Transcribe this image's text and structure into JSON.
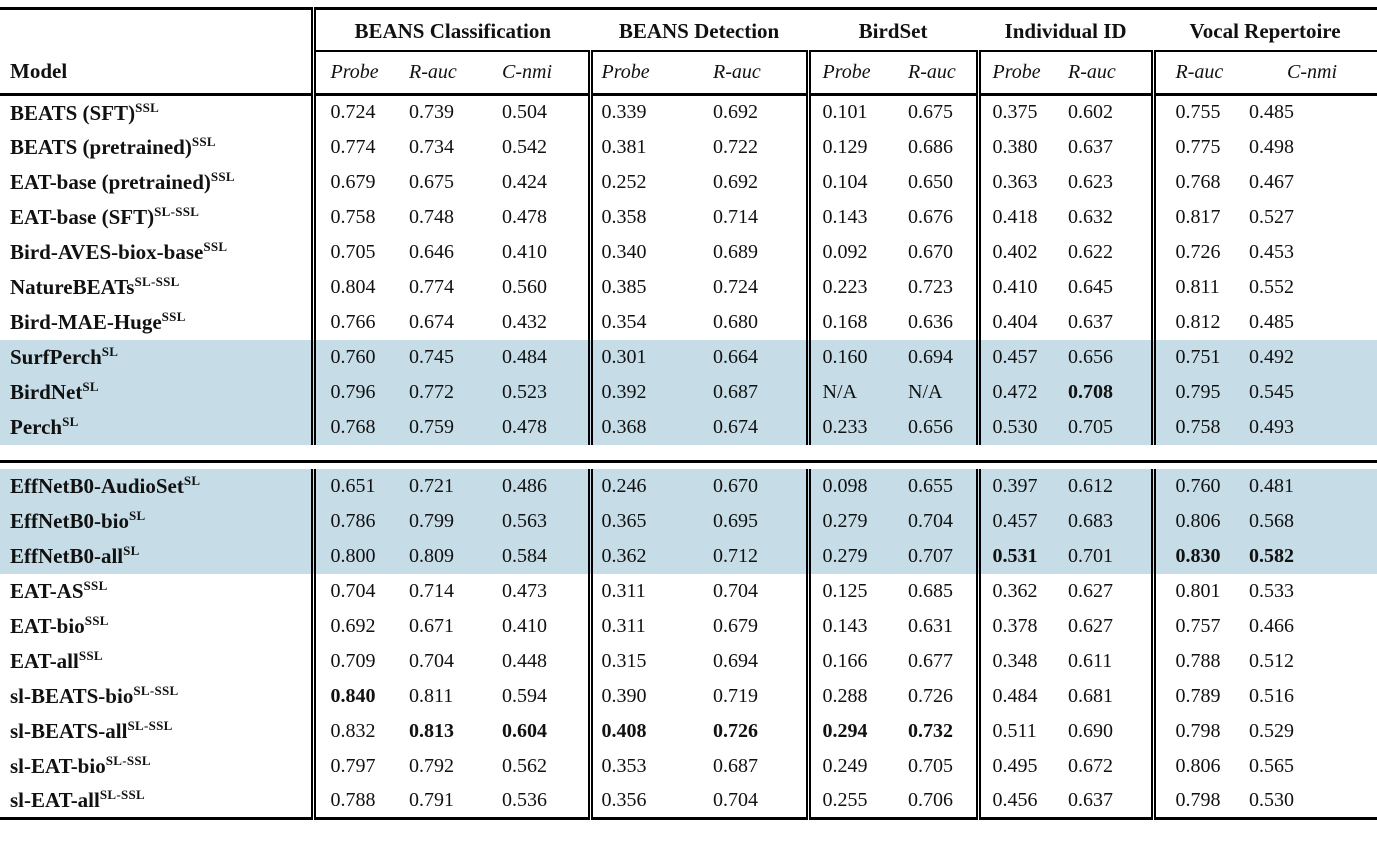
{
  "table": {
    "model_header": "Model",
    "highlight_color": "#c6dde8",
    "na_label": "N/A",
    "groups": [
      {
        "label": "BEANS Classification",
        "cols": [
          "Probe",
          "R-auc",
          "C-nmi"
        ]
      },
      {
        "label": "BEANS Detection",
        "cols": [
          "Probe",
          "R-auc"
        ]
      },
      {
        "label": "BirdSet",
        "cols": [
          "Probe",
          "R-auc"
        ]
      },
      {
        "label": "Individual ID",
        "cols": [
          "Probe",
          "R-auc"
        ]
      },
      {
        "label": "Vocal Repertoire",
        "cols": [
          "R-auc",
          "C-nmi"
        ]
      }
    ],
    "rows": [
      {
        "model": "BEATS (SFT)",
        "sup": "SSL",
        "highlight": false,
        "values": [
          "0.724",
          "0.739",
          "0.504",
          "0.339",
          "0.692",
          "0.101",
          "0.675",
          "0.375",
          "0.602",
          "0.755",
          "0.485"
        ],
        "bold": []
      },
      {
        "model": "BEATS (pretrained)",
        "sup": "SSL",
        "highlight": false,
        "values": [
          "0.774",
          "0.734",
          "0.542",
          "0.381",
          "0.722",
          "0.129",
          "0.686",
          "0.380",
          "0.637",
          "0.775",
          "0.498"
        ],
        "bold": []
      },
      {
        "model": "EAT-base (pretrained)",
        "sup": "SSL",
        "highlight": false,
        "values": [
          "0.679",
          "0.675",
          "0.424",
          "0.252",
          "0.692",
          "0.104",
          "0.650",
          "0.363",
          "0.623",
          "0.768",
          "0.467"
        ],
        "bold": []
      },
      {
        "model": "EAT-base (SFT)",
        "sup": "SL-SSL",
        "highlight": false,
        "values": [
          "0.758",
          "0.748",
          "0.478",
          "0.358",
          "0.714",
          "0.143",
          "0.676",
          "0.418",
          "0.632",
          "0.817",
          "0.527"
        ],
        "bold": []
      },
      {
        "model": "Bird-AVES-biox-base",
        "sup": "SSL",
        "highlight": false,
        "values": [
          "0.705",
          "0.646",
          "0.410",
          "0.340",
          "0.689",
          "0.092",
          "0.670",
          "0.402",
          "0.622",
          "0.726",
          "0.453"
        ],
        "bold": []
      },
      {
        "model": "NatureBEATs",
        "sup": "SL-SSL",
        "highlight": false,
        "values": [
          "0.804",
          "0.774",
          "0.560",
          "0.385",
          "0.724",
          "0.223",
          "0.723",
          "0.410",
          "0.645",
          "0.811",
          "0.552"
        ],
        "bold": []
      },
      {
        "model": "Bird-MAE-Huge",
        "sup": "SSL",
        "highlight": false,
        "values": [
          "0.766",
          "0.674",
          "0.432",
          "0.354",
          "0.680",
          "0.168",
          "0.636",
          "0.404",
          "0.637",
          "0.812",
          "0.485"
        ],
        "bold": []
      },
      {
        "model": "SurfPerch",
        "sup": "SL",
        "highlight": true,
        "values": [
          "0.760",
          "0.745",
          "0.484",
          "0.301",
          "0.664",
          "0.160",
          "0.694",
          "0.457",
          "0.656",
          "0.751",
          "0.492"
        ],
        "bold": []
      },
      {
        "model": "BirdNet",
        "sup": "SL",
        "highlight": true,
        "values": [
          "0.796",
          "0.772",
          "0.523",
          "0.392",
          "0.687",
          "N/A",
          "N/A",
          "0.472",
          "0.708",
          "0.795",
          "0.545"
        ],
        "bold": [
          8
        ]
      },
      {
        "model": "Perch",
        "sup": "SL",
        "highlight": true,
        "divider_after": true,
        "values": [
          "0.768",
          "0.759",
          "0.478",
          "0.368",
          "0.674",
          "0.233",
          "0.656",
          "0.530",
          "0.705",
          "0.758",
          "0.493"
        ],
        "bold": []
      },
      {
        "model": "EffNetB0-AudioSet",
        "sup": "SL",
        "highlight": true,
        "values": [
          "0.651",
          "0.721",
          "0.486",
          "0.246",
          "0.670",
          "0.098",
          "0.655",
          "0.397",
          "0.612",
          "0.760",
          "0.481"
        ],
        "bold": []
      },
      {
        "model": "EffNetB0-bio",
        "sup": "SL",
        "highlight": true,
        "values": [
          "0.786",
          "0.799",
          "0.563",
          "0.365",
          "0.695",
          "0.279",
          "0.704",
          "0.457",
          "0.683",
          "0.806",
          "0.568"
        ],
        "bold": []
      },
      {
        "model": "EffNetB0-all",
        "sup": "SL",
        "highlight": true,
        "values": [
          "0.800",
          "0.809",
          "0.584",
          "0.362",
          "0.712",
          "0.279",
          "0.707",
          "0.531",
          "0.701",
          "0.830",
          "0.582"
        ],
        "bold": [
          7,
          9,
          10
        ]
      },
      {
        "model": "EAT-AS",
        "sup": "SSL",
        "highlight": false,
        "values": [
          "0.704",
          "0.714",
          "0.473",
          "0.311",
          "0.704",
          "0.125",
          "0.685",
          "0.362",
          "0.627",
          "0.801",
          "0.533"
        ],
        "bold": []
      },
      {
        "model": "EAT-bio",
        "sup": "SSL",
        "highlight": false,
        "values": [
          "0.692",
          "0.671",
          "0.410",
          "0.311",
          "0.679",
          "0.143",
          "0.631",
          "0.378",
          "0.627",
          "0.757",
          "0.466"
        ],
        "bold": []
      },
      {
        "model": "EAT-all",
        "sup": "SSL",
        "highlight": false,
        "values": [
          "0.709",
          "0.704",
          "0.448",
          "0.315",
          "0.694",
          "0.166",
          "0.677",
          "0.348",
          "0.611",
          "0.788",
          "0.512"
        ],
        "bold": []
      },
      {
        "model": "sl-BEATS-bio",
        "sup": "SL-SSL",
        "highlight": false,
        "values": [
          "0.840",
          "0.811",
          "0.594",
          "0.390",
          "0.719",
          "0.288",
          "0.726",
          "0.484",
          "0.681",
          "0.789",
          "0.516"
        ],
        "bold": [
          0
        ]
      },
      {
        "model": "sl-BEATS-all",
        "sup": "SL-SSL",
        "highlight": false,
        "values": [
          "0.832",
          "0.813",
          "0.604",
          "0.408",
          "0.726",
          "0.294",
          "0.732",
          "0.511",
          "0.690",
          "0.798",
          "0.529"
        ],
        "bold": [
          1,
          2,
          3,
          4,
          5,
          6
        ]
      },
      {
        "model": "sl-EAT-bio",
        "sup": "SL-SSL",
        "highlight": false,
        "values": [
          "0.797",
          "0.792",
          "0.562",
          "0.353",
          "0.687",
          "0.249",
          "0.705",
          "0.495",
          "0.672",
          "0.806",
          "0.565"
        ],
        "bold": []
      },
      {
        "model": "sl-EAT-all",
        "sup": "SL-SSL",
        "highlight": false,
        "values": [
          "0.788",
          "0.791",
          "0.536",
          "0.356",
          "0.704",
          "0.255",
          "0.706",
          "0.456",
          "0.637",
          "0.798",
          "0.530"
        ],
        "bold": []
      }
    ]
  }
}
